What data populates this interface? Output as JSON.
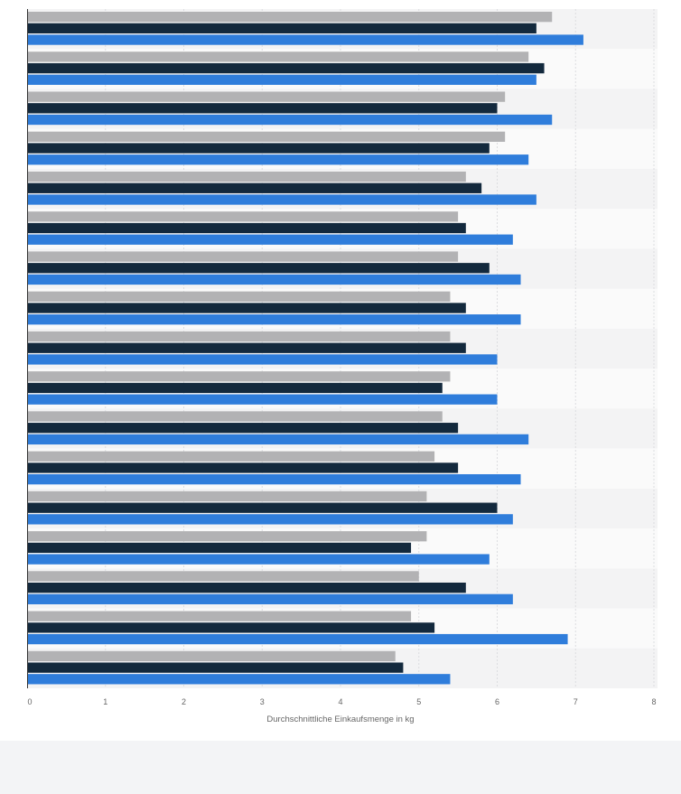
{
  "chart_data": {
    "type": "bar",
    "orientation": "horizontal",
    "xlabel": "Durchschnittliche Einkaufsmenge in kg",
    "xlim": [
      0,
      8
    ],
    "xticks": [
      0,
      1,
      2,
      3,
      4,
      5,
      6,
      7,
      8
    ],
    "grid": true,
    "legend": "none",
    "categories": [
      "",
      "",
      "",
      "",
      "",
      "",
      "",
      "",
      "",
      "",
      "",
      "",
      "",
      "",
      "",
      "",
      ""
    ],
    "series": [
      {
        "color": "#b2b2b4",
        "values": [
          6.7,
          6.4,
          6.1,
          6.1,
          5.6,
          5.5,
          5.5,
          5.4,
          5.4,
          5.4,
          5.3,
          5.2,
          5.1,
          5.1,
          5.0,
          4.9,
          4.7
        ]
      },
      {
        "color": "#13293d",
        "values": [
          6.5,
          6.6,
          6.0,
          5.9,
          5.8,
          5.6,
          5.9,
          5.6,
          5.6,
          5.3,
          5.5,
          5.5,
          6.0,
          4.9,
          5.6,
          5.2,
          4.8
        ]
      },
      {
        "color": "#2f7ddb",
        "values": [
          7.1,
          6.5,
          6.7,
          6.4,
          6.5,
          6.2,
          6.3,
          6.3,
          6.0,
          6.0,
          6.4,
          6.3,
          6.2,
          5.9,
          6.2,
          6.9,
          5.4
        ]
      }
    ]
  }
}
